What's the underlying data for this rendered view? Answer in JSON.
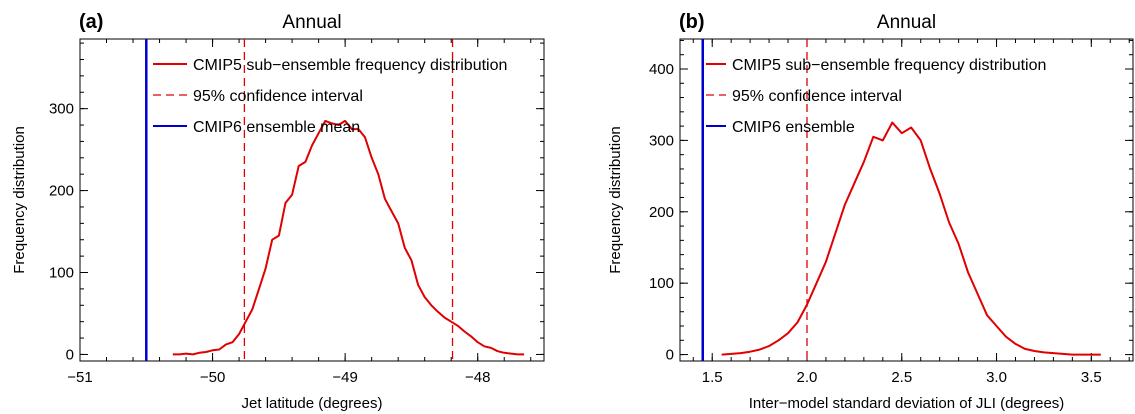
{
  "chart_data": [
    {
      "type": "line",
      "panel_label": "(a)",
      "title": "Annual",
      "xlabel": "Jet latitude (degrees)",
      "ylabel": "Frequency distribution",
      "xlim": [
        -51,
        -47.5
      ],
      "ylim": [
        -8,
        385
      ],
      "xticks": [
        -51,
        -50,
        -49,
        -48
      ],
      "xtick_labels": [
        "−51",
        "−50",
        "−49",
        "−48"
      ],
      "yticks": [
        0,
        100,
        200,
        300
      ],
      "ytick_labels": [
        "0",
        "100",
        "200",
        "300"
      ],
      "legend": {
        "position": "top",
        "entries": [
          {
            "label": "CMIP5 sub−ensemble frequency distribution",
            "style": "solid",
            "color": "#e00000"
          },
          {
            "label": "95% confidence interval",
            "style": "dashed",
            "color": "#e00000"
          },
          {
            "label": "CMIP6 ensemble mean",
            "style": "solid",
            "color": "#0000cc"
          }
        ]
      },
      "series": [
        {
          "name": "CMIP5 sub−ensemble frequency distribution",
          "color": "#e00000",
          "style": "solid",
          "x": [
            -50.3,
            -50.25,
            -50.2,
            -50.15,
            -50.1,
            -50.05,
            -50.0,
            -49.95,
            -49.9,
            -49.85,
            -49.8,
            -49.75,
            -49.7,
            -49.65,
            -49.6,
            -49.55,
            -49.5,
            -49.45,
            -49.4,
            -49.35,
            -49.3,
            -49.25,
            -49.2,
            -49.15,
            -49.1,
            -49.05,
            -49.0,
            -48.95,
            -48.9,
            -48.85,
            -48.8,
            -48.75,
            -48.7,
            -48.65,
            -48.6,
            -48.55,
            -48.5,
            -48.45,
            -48.4,
            -48.35,
            -48.3,
            -48.25,
            -48.2,
            -48.15,
            -48.1,
            -48.05,
            -48.0,
            -47.95,
            -47.9,
            -47.85,
            -47.8,
            -47.75,
            -47.7,
            -47.65
          ],
          "y": [
            0,
            0,
            1,
            0,
            2,
            3,
            5,
            6,
            12,
            15,
            25,
            40,
            55,
            80,
            105,
            140,
            145,
            185,
            195,
            230,
            235,
            255,
            270,
            285,
            282,
            280,
            285,
            275,
            275,
            265,
            240,
            220,
            190,
            175,
            160,
            130,
            115,
            85,
            70,
            60,
            52,
            45,
            40,
            35,
            28,
            22,
            15,
            10,
            8,
            4,
            2,
            1,
            0,
            0
          ]
        }
      ],
      "vertical_lines": [
        {
          "x": -49.76,
          "style": "dashed",
          "color": "#e00000"
        },
        {
          "x": -48.19,
          "style": "dashed",
          "color": "#e00000"
        },
        {
          "x": -50.5,
          "style": "solid",
          "color": "#0000cc"
        }
      ]
    },
    {
      "type": "line",
      "panel_label": "(b)",
      "title": "Annual",
      "xlabel": "Inter−model standard deviation of JLI (degrees)",
      "ylabel": "Frequency distribution",
      "xlim": [
        1.33,
        3.72
      ],
      "ylim": [
        -9,
        442
      ],
      "xticks": [
        1.5,
        2.0,
        2.5,
        3.0,
        3.5
      ],
      "xtick_labels": [
        "1.5",
        "2.0",
        "2.5",
        "3.0",
        "3.5"
      ],
      "yticks": [
        0,
        100,
        200,
        300,
        400
      ],
      "ytick_labels": [
        "0",
        "100",
        "200",
        "300",
        "400"
      ],
      "legend": {
        "position": "top",
        "entries": [
          {
            "label": "CMIP5 sub−ensemble frequency distribution",
            "style": "solid",
            "color": "#e00000"
          },
          {
            "label": "95% confidence interval",
            "style": "dashed",
            "color": "#e00000"
          },
          {
            "label": "CMIP6 ensemble",
            "style": "solid",
            "color": "#0000cc"
          }
        ]
      },
      "series": [
        {
          "name": "CMIP5 sub−ensemble frequency distribution",
          "color": "#e00000",
          "style": "solid",
          "x": [
            1.55,
            1.6,
            1.65,
            1.7,
            1.75,
            1.8,
            1.85,
            1.9,
            1.95,
            2.0,
            2.05,
            2.1,
            2.15,
            2.2,
            2.25,
            2.3,
            2.35,
            2.4,
            2.45,
            2.5,
            2.55,
            2.6,
            2.65,
            2.7,
            2.75,
            2.8,
            2.85,
            2.9,
            2.95,
            3.0,
            3.05,
            3.1,
            3.15,
            3.2,
            3.25,
            3.3,
            3.35,
            3.4,
            3.45,
            3.5,
            3.55
          ],
          "y": [
            0,
            1,
            2,
            4,
            7,
            12,
            20,
            30,
            45,
            70,
            100,
            130,
            170,
            210,
            240,
            270,
            305,
            300,
            325,
            310,
            318,
            300,
            260,
            225,
            185,
            155,
            115,
            85,
            55,
            40,
            25,
            15,
            8,
            5,
            3,
            2,
            1,
            0,
            0,
            0,
            0
          ]
        }
      ],
      "vertical_lines": [
        {
          "x": 2.0,
          "style": "dashed",
          "color": "#e00000"
        },
        {
          "x": 1.45,
          "style": "solid",
          "color": "#0000cc"
        }
      ]
    }
  ]
}
